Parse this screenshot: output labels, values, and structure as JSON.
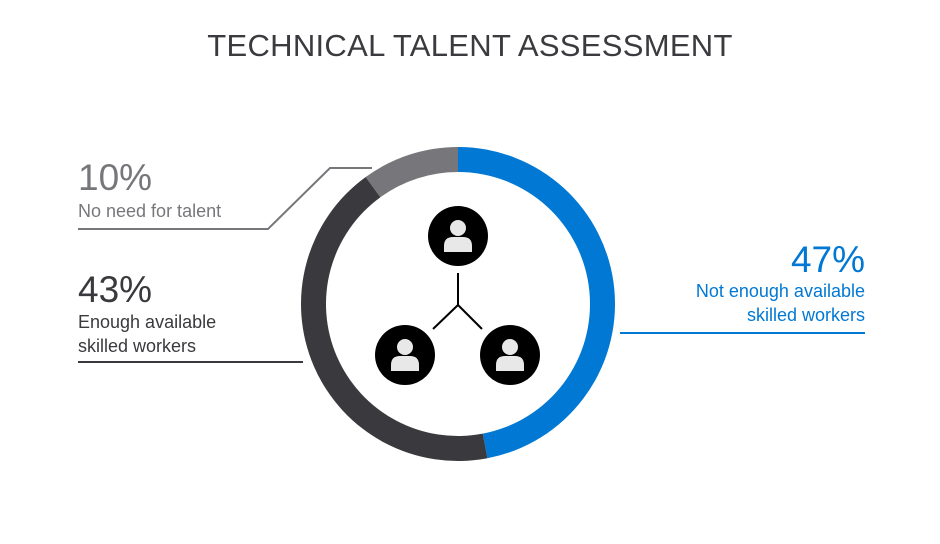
{
  "chart_data": {
    "type": "pie",
    "donut": true,
    "title": "TECHNICAL TALENT ASSESSMENT",
    "slices": [
      {
        "label": "Not enough available skilled workers",
        "label_lines": [
          "Not enough available",
          "skilled workers"
        ],
        "value": 47,
        "value_label": "47%",
        "color": "#0078d4"
      },
      {
        "label": "Enough available skilled workers",
        "label_lines": [
          "Enough available",
          "skilled workers"
        ],
        "value": 43,
        "value_label": "43%",
        "color": "#3a3a3e"
      },
      {
        "label": "No need for talent",
        "label_lines": [
          "No need for talent"
        ],
        "value": 10,
        "value_label": "10%",
        "color": "#77777b"
      }
    ],
    "center_icon": "three-connected-people-icons"
  }
}
